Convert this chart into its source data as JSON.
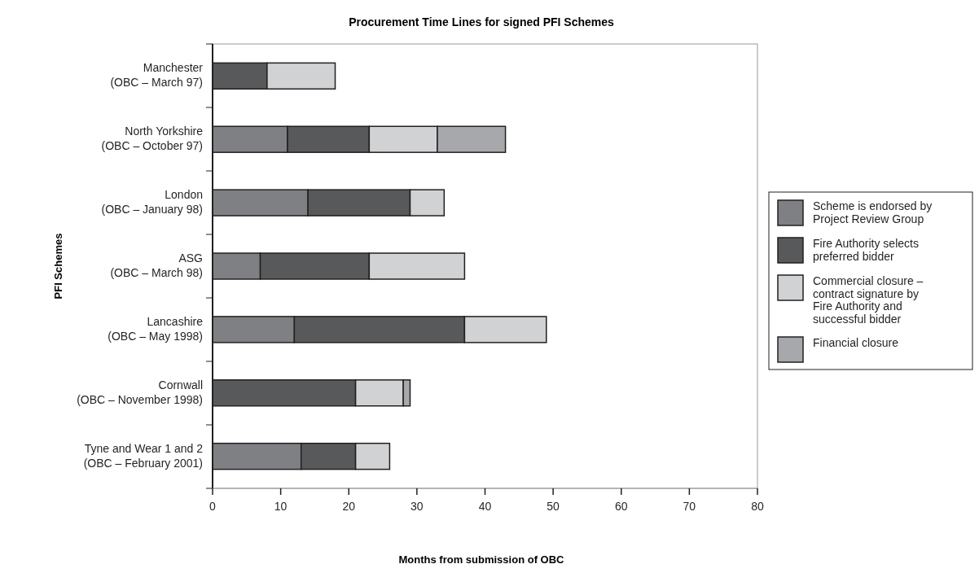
{
  "chart_data": {
    "type": "bar",
    "orientation": "horizontal",
    "stacked": true,
    "title": "Procurement Time Lines for signed PFI Schemes",
    "xlabel": "Months from submission of OBC",
    "ylabel": "PFI Schemes",
    "categories": [
      "Manchester\n(OBC – March 97)",
      "North Yorkshire\n(OBC – October 97)",
      "London\n(OBC – January 98)",
      "ASG\n(OBC – March 98)",
      "Lancashire\n(OBC – May 1998)",
      "Cornwall\n(OBC – November 1998)",
      "Tyne and Wear 1 and 2\n(OBC – February 2001)"
    ],
    "series": [
      {
        "name": "Scheme is endorsed by Project Review Group",
        "color": "#7f8084",
        "values": [
          0,
          11,
          14,
          7,
          12,
          0,
          13
        ]
      },
      {
        "name": "Fire Authority selects preferred bidder",
        "color": "#58595b",
        "values": [
          8,
          12,
          15,
          16,
          25,
          21,
          8
        ]
      },
      {
        "name": "Commercial closure – contract signature by Fire Authority and successful bidder",
        "color": "#d1d2d4",
        "values": [
          10,
          10,
          5,
          14,
          12,
          7,
          5
        ]
      },
      {
        "name": "Financial closure",
        "color": "#a7a8ab",
        "values": [
          0,
          10,
          0,
          0,
          0,
          1,
          0
        ]
      }
    ],
    "xlim": [
      0,
      80
    ],
    "xticks": [
      0,
      10,
      20,
      30,
      40,
      50,
      60,
      70,
      80
    ],
    "grid": false,
    "legend": "right"
  }
}
